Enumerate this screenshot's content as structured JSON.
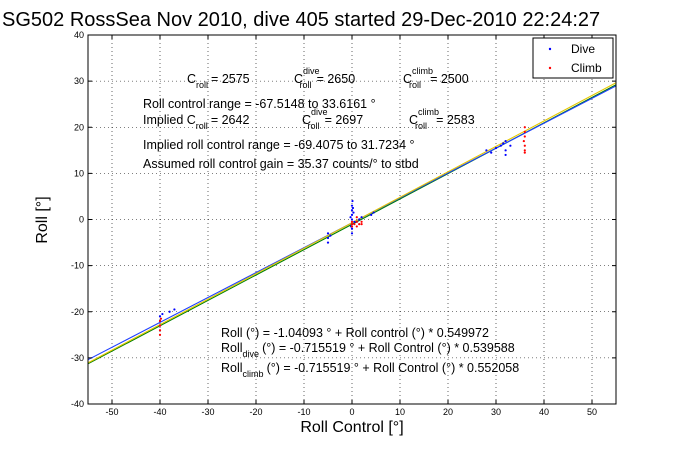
{
  "chart_data": {
    "type": "scatter",
    "title": "SG502 RossSea Nov 2010, dive 405 started 29-Dec-2010 22:24:27",
    "xlabel": "Roll Control [°]",
    "ylabel": "Roll [°]",
    "xlim": [
      -55,
      55
    ],
    "ylim": [
      -40,
      40
    ],
    "xticks": [
      -50,
      -40,
      -30,
      -20,
      -10,
      0,
      10,
      20,
      30,
      40,
      50
    ],
    "yticks": [
      -40,
      -30,
      -20,
      -10,
      0,
      10,
      20,
      30,
      40
    ],
    "grid": true,
    "legend": {
      "position": "top-right",
      "entries": [
        "Dive",
        "Climb"
      ]
    },
    "colors": {
      "dive": "#0000ff",
      "climb": "#ff0000",
      "fit_all": "#008000",
      "fit_dive": "#1f3fff",
      "fit_climb": "#e6c700"
    },
    "series": [
      {
        "name": "Dive",
        "color": "#0000ff",
        "points": [
          [
            -40,
            -21
          ],
          [
            -40,
            -22
          ],
          [
            -40,
            -23
          ],
          [
            -39.5,
            -20.5
          ],
          [
            -38,
            -20
          ],
          [
            -37,
            -19.5
          ],
          [
            -5,
            -3
          ],
          [
            -5,
            -4
          ],
          [
            -5,
            -5
          ],
          [
            -4.5,
            -3.5
          ],
          [
            0,
            3
          ],
          [
            0,
            2
          ],
          [
            0,
            1
          ],
          [
            0,
            0
          ],
          [
            0,
            -1
          ],
          [
            0,
            -2
          ],
          [
            0,
            -3
          ],
          [
            0.3,
            1.5
          ],
          [
            0.5,
            -0.5
          ],
          [
            -0.3,
            0.5
          ],
          [
            0.2,
            2.5
          ],
          [
            -0.2,
            -1.5
          ],
          [
            0.1,
            4
          ],
          [
            1,
            -0.5
          ],
          [
            1.5,
            0
          ],
          [
            2,
            0.5
          ],
          [
            4,
            1
          ],
          [
            4.5,
            1.5
          ],
          [
            28,
            15
          ],
          [
            29,
            14.5
          ],
          [
            30,
            15.5
          ],
          [
            31,
            16
          ],
          [
            31.5,
            16.5
          ],
          [
            32,
            17
          ],
          [
            32,
            15
          ],
          [
            32,
            14
          ],
          [
            33,
            16
          ]
        ]
      },
      {
        "name": "Climb",
        "color": "#ff0000",
        "points": [
          [
            -40,
            -22
          ],
          [
            -40,
            -23
          ],
          [
            -40,
            -24
          ],
          [
            -40,
            -25
          ],
          [
            -39.8,
            -21.5
          ],
          [
            0,
            -0.5
          ],
          [
            0,
            -1
          ],
          [
            0,
            -1.5
          ],
          [
            0.5,
            -1
          ],
          [
            1,
            -0.5
          ],
          [
            1,
            -1.5
          ],
          [
            1.5,
            -1
          ],
          [
            2,
            -1
          ],
          [
            2,
            -0.5
          ],
          [
            1,
            0.5
          ],
          [
            36,
            20
          ],
          [
            36,
            19
          ],
          [
            36,
            18
          ],
          [
            36,
            16
          ],
          [
            36,
            15
          ],
          [
            36,
            14.5
          ],
          [
            35.8,
            17
          ]
        ]
      }
    ],
    "fits": [
      {
        "name": "Roll (°) = -1.04093 ° + Roll control (°) * 0.549972",
        "intercept": -1.04093,
        "slope": 0.549972,
        "color": "#008000"
      },
      {
        "name": "Roll dive (°) = -0.715519 ° + Roll Control (°) * 0.539588",
        "intercept": -0.715519,
        "slope": 0.539588,
        "color": "#1f3fff"
      },
      {
        "name": "Roll climb (°) = -0.715519 ° + Roll Control (°) * 0.552058",
        "intercept": -0.715519,
        "slope": 0.552058,
        "color": "#e6c700"
      }
    ],
    "annotations": {
      "c_roll": {
        "label": "C",
        "sub": "roll",
        "value": "= 2575"
      },
      "c_roll_dive": {
        "label": "C",
        "sup": "dive",
        "sub": "roll",
        "value": "= 2650"
      },
      "c_roll_climb": {
        "label": "C",
        "sup": "climb",
        "sub": "roll",
        "value": "= 2500"
      },
      "roll_control_range": "Roll control range = -67.5148 to 33.6161 °",
      "implied_c_roll": {
        "label": "Implied C",
        "sub": "roll",
        "value": "= 2642"
      },
      "implied_c_roll_dive": {
        "label": "C",
        "sup": "dive",
        "sub": "roll",
        "value": "= 2697"
      },
      "implied_c_roll_climb": {
        "label": "C",
        "sup": "climb",
        "sub": "roll",
        "value": "= 2583"
      },
      "implied_roll_control_range": "Implied roll control range = -69.4075 to 31.7234 °",
      "assumed_gain": "Assumed roll control gain = 35.37 counts/° to stbd",
      "fit_all": "Roll (°) = -1.04093 ° + Roll control (°) * 0.549972",
      "fit_dive": {
        "label": "Roll",
        "sub": "dive",
        "value": "(°) = -0.715519 ° + Roll Control (°) * 0.539588"
      },
      "fit_climb": {
        "label": "Roll",
        "sub": "climb",
        "value": "(°) = -0.715519 ° + Roll Control (°) * 0.552058"
      }
    }
  }
}
